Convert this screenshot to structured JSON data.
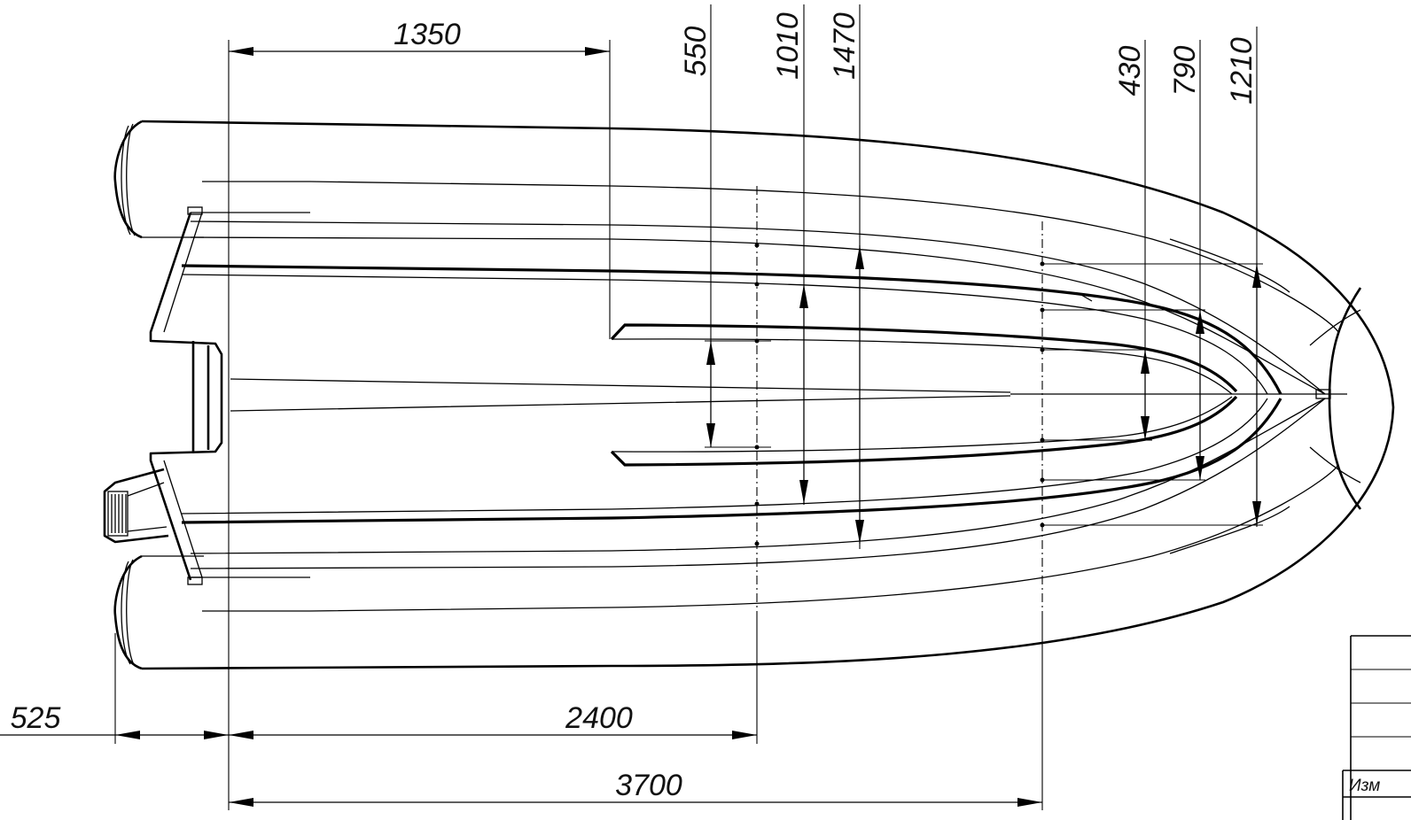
{
  "dimensions": {
    "transom_to_console": "1350",
    "floor_width_stern": "550",
    "inner_width_stern": "1010",
    "outer_width_stern": "1470",
    "floor_width_bow": "430",
    "inner_width_bow": "790",
    "outer_width_bow": "1210",
    "tube_overhang": "525",
    "transom_to_midstation": "2400",
    "transom_to_bow_station": "3700"
  },
  "title_block": {
    "label": "Изм"
  }
}
